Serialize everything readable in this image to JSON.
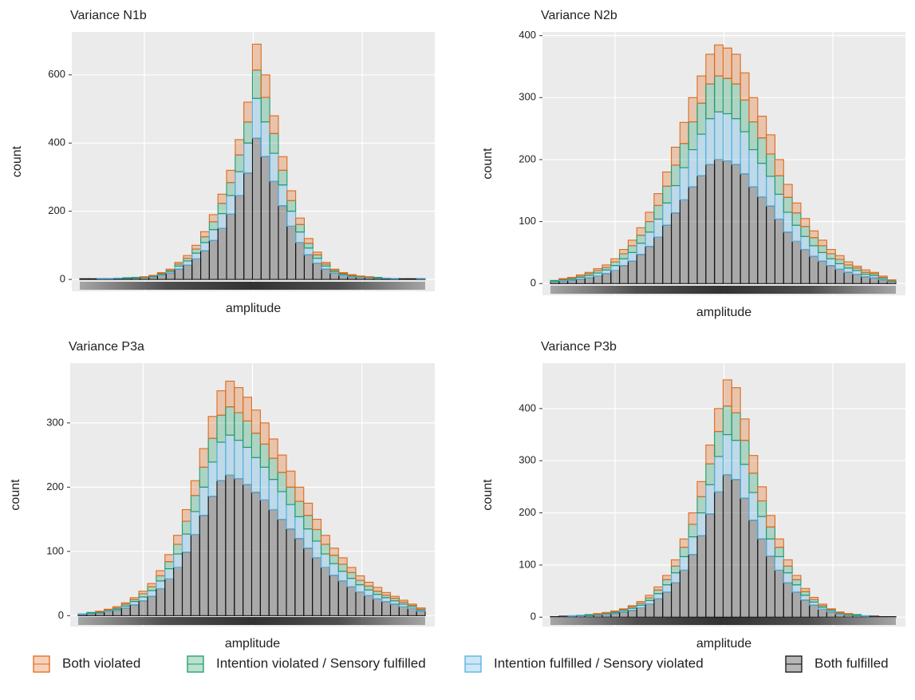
{
  "chart_data": [
    {
      "type": "histogram",
      "title": "Variance N1b",
      "x_label": "amplitude",
      "y_label": "count",
      "ylim": [
        -35,
        726
      ],
      "yticks": [
        0,
        200,
        400,
        600
      ],
      "series": [
        {
          "values": [
            0,
            0,
            0,
            0,
            0,
            0,
            0,
            1,
            1,
            2,
            3,
            5,
            8,
            11,
            15,
            21,
            27,
            36,
            45,
            58,
            76,
            66,
            52,
            40,
            29,
            19,
            14,
            8,
            5,
            3,
            2,
            2,
            1,
            1,
            0,
            0,
            0,
            0,
            0,
            0
          ]
        },
        {
          "values": [
            0,
            0,
            0,
            0,
            0,
            1,
            1,
            1,
            2,
            3,
            4,
            6,
            8,
            12,
            17,
            23,
            30,
            38,
            49,
            62,
            83,
            72,
            58,
            43,
            31,
            22,
            14,
            10,
            6,
            4,
            3,
            2,
            1,
            1,
            1,
            0,
            0,
            0,
            0,
            0
          ]
        },
        {
          "values": [
            0,
            0,
            1,
            1,
            1,
            1,
            1,
            1,
            2,
            3,
            5,
            9,
            12,
            17,
            24,
            32,
            43,
            54,
            70,
            88,
            117,
            102,
            82,
            61,
            44,
            31,
            20,
            14,
            9,
            5,
            3,
            2,
            2,
            1,
            1,
            1,
            1,
            0,
            0,
            1
          ]
        },
        {
          "values": [
            2,
            2,
            2,
            2,
            3,
            3,
            4,
            5,
            7,
            12,
            18,
            30,
            42,
            60,
            84,
            114,
            150,
            192,
            246,
            312,
            414,
            360,
            288,
            216,
            156,
            108,
            72,
            48,
            30,
            18,
            12,
            8,
            6,
            5,
            4,
            3,
            2,
            2,
            2,
            2
          ]
        }
      ]
    },
    {
      "type": "histogram",
      "title": "Variance N2b",
      "x_label": "amplitude",
      "y_label": "count",
      "ylim": [
        -19,
        406
      ],
      "yticks": [
        0,
        100,
        200,
        300,
        400
      ],
      "series": [
        {
          "values": [
            0,
            1,
            1,
            2,
            2,
            3,
            4,
            5,
            7,
            9,
            12,
            15,
            19,
            23,
            29,
            34,
            39,
            44,
            48,
            50,
            49,
            48,
            44,
            39,
            35,
            31,
            26,
            21,
            16,
            13,
            11,
            9,
            7,
            6,
            5,
            3,
            4,
            2,
            2,
            1
          ]
        },
        {
          "values": [
            1,
            1,
            2,
            2,
            3,
            4,
            4,
            6,
            8,
            11,
            13,
            17,
            22,
            27,
            33,
            39,
            45,
            50,
            56,
            58,
            57,
            56,
            51,
            45,
            41,
            36,
            30,
            24,
            20,
            16,
            13,
            11,
            8,
            7,
            5,
            4,
            3,
            3,
            2,
            1
          ]
        },
        {
          "values": [
            1,
            2,
            2,
            3,
            4,
            5,
            6,
            8,
            11,
            14,
            18,
            23,
            29,
            36,
            44,
            52,
            60,
            67,
            74,
            77,
            76,
            74,
            68,
            60,
            54,
            48,
            40,
            32,
            26,
            21,
            17,
            14,
            11,
            9,
            7,
            6,
            4,
            4,
            2,
            1
          ]
        },
        {
          "values": [
            3,
            4,
            5,
            7,
            9,
            12,
            16,
            21,
            29,
            36,
            47,
            60,
            75,
            94,
            114,
            135,
            156,
            174,
            192,
            200,
            198,
            192,
            177,
            156,
            140,
            125,
            104,
            83,
            68,
            55,
            44,
            36,
            29,
            23,
            18,
            15,
            11,
            9,
            6,
            3
          ]
        }
      ]
    },
    {
      "type": "histogram",
      "title": "Variance P3a",
      "x_label": "amplitude",
      "y_label": "count",
      "ylim": [
        -17,
        393
      ],
      "yticks": [
        0,
        100,
        200,
        300
      ],
      "series": [
        {
          "values": [
            0,
            0,
            1,
            1,
            2,
            2,
            3,
            4,
            5,
            8,
            11,
            14,
            18,
            23,
            29,
            34,
            38,
            40,
            39,
            37,
            36,
            33,
            30,
            27,
            25,
            22,
            19,
            16,
            14,
            11,
            10,
            8,
            7,
            6,
            6,
            4,
            3,
            3,
            2,
            2
          ]
        },
        {
          "values": [
            0,
            1,
            1,
            1,
            2,
            3,
            3,
            5,
            6,
            8,
            11,
            15,
            20,
            25,
            31,
            37,
            42,
            44,
            43,
            41,
            38,
            36,
            33,
            30,
            27,
            24,
            21,
            18,
            15,
            13,
            11,
            9,
            7,
            6,
            5,
            4,
            4,
            3,
            2,
            1
          ]
        },
        {
          "values": [
            1,
            1,
            1,
            2,
            2,
            3,
            5,
            6,
            9,
            12,
            16,
            21,
            28,
            36,
            44,
            53,
            60,
            62,
            60,
            58,
            54,
            51,
            47,
            43,
            38,
            34,
            30,
            26,
            21,
            18,
            15,
            13,
            11,
            9,
            7,
            6,
            5,
            4,
            3,
            2
          ]
        },
        {
          "values": [
            2,
            3,
            4,
            6,
            8,
            12,
            17,
            23,
            30,
            42,
            57,
            75,
            99,
            126,
            156,
            186,
            210,
            219,
            213,
            204,
            192,
            180,
            165,
            150,
            135,
            120,
            105,
            90,
            75,
            63,
            54,
            45,
            37,
            31,
            26,
            22,
            18,
            14,
            11,
            7
          ]
        }
      ]
    },
    {
      "type": "histogram",
      "title": "Variance P3b",
      "x_label": "amplitude",
      "y_label": "count",
      "ylim": [
        -18,
        487
      ],
      "yticks": [
        0,
        100,
        200,
        300,
        400
      ],
      "series": [
        {
          "values": [
            0,
            0,
            0,
            0,
            0,
            1,
            1,
            1,
            1,
            2,
            3,
            5,
            6,
            8,
            12,
            16,
            22,
            29,
            36,
            44,
            50,
            48,
            41,
            34,
            27,
            22,
            16,
            12,
            8,
            6,
            4,
            3,
            1,
            1,
            1,
            0,
            0,
            0,
            0,
            0
          ]
        },
        {
          "values": [
            0,
            0,
            0,
            0,
            1,
            1,
            1,
            2,
            2,
            3,
            4,
            5,
            7,
            10,
            13,
            18,
            24,
            31,
            40,
            48,
            55,
            53,
            46,
            37,
            30,
            23,
            18,
            13,
            10,
            7,
            5,
            3,
            2,
            1,
            1,
            1,
            0,
            0,
            0,
            0
          ]
        },
        {
          "values": [
            0,
            0,
            1,
            1,
            1,
            1,
            2,
            2,
            3,
            4,
            5,
            7,
            10,
            14,
            19,
            26,
            34,
            44,
            56,
            68,
            77,
            75,
            65,
            53,
            43,
            33,
            26,
            19,
            14,
            9,
            6,
            4,
            3,
            2,
            1,
            1,
            1,
            0,
            0,
            0
          ]
        },
        {
          "values": [
            1,
            2,
            2,
            3,
            3,
            4,
            5,
            7,
            10,
            13,
            18,
            25,
            35,
            48,
            66,
            90,
            120,
            156,
            198,
            240,
            273,
            264,
            228,
            186,
            150,
            117,
            90,
            66,
            48,
            33,
            23,
            15,
            10,
            6,
            4,
            3,
            2,
            2,
            1,
            1
          ]
        }
      ]
    }
  ],
  "legend": [
    {
      "name": "Both violated",
      "color": "#e0691c"
    },
    {
      "name": "Intention violated / Sensory fulfilled",
      "color": "#1f9a68"
    },
    {
      "name": "Intention fulfilled / Sensory violated",
      "color": "#55aee0"
    },
    {
      "name": "Both fulfilled",
      "color": "#111111"
    }
  ]
}
